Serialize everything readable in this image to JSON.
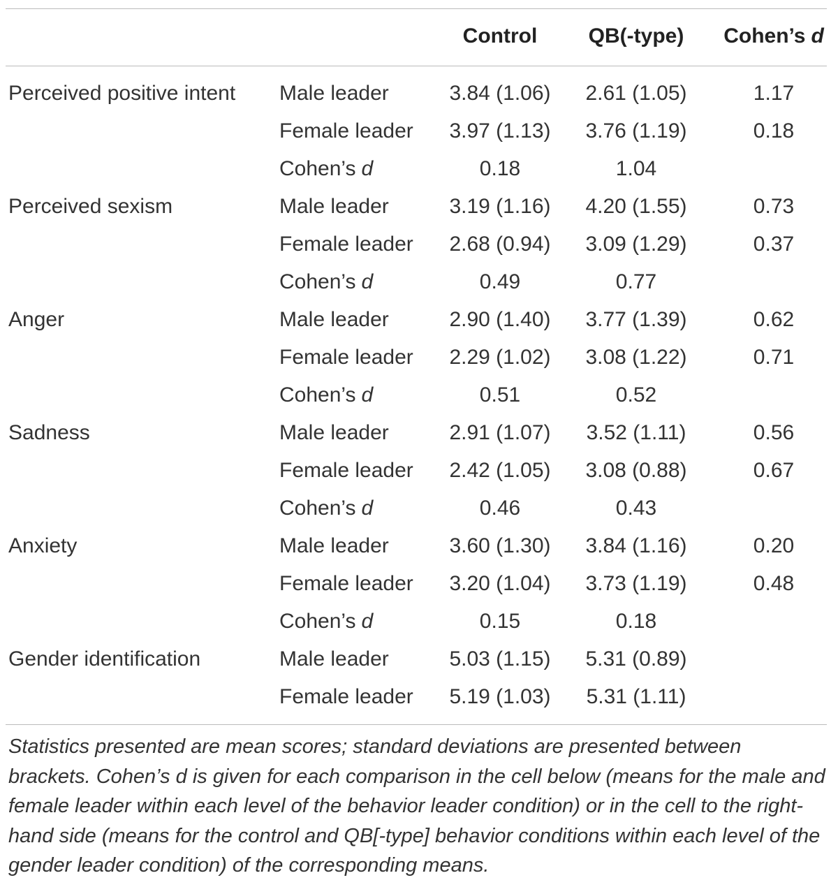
{
  "table": {
    "header": [
      [
        "Control"
      ],
      [
        "QB(-type)"
      ],
      [
        "Cohen’s",
        "d"
      ]
    ],
    "groups": [
      {
        "label": "Perceived positive intent",
        "rows": [
          {
            "condition": [
              "Male leader"
            ],
            "control": "3.84 (1.06)",
            "qb": "2.61 (1.05)",
            "d": "1.17"
          },
          {
            "condition": [
              "Female leader"
            ],
            "control": "3.97 (1.13)",
            "qb": "3.76 (1.19)",
            "d": "0.18"
          },
          {
            "condition": [
              "Cohen’s",
              "d"
            ],
            "control": "0.18",
            "qb": "1.04"
          }
        ]
      },
      {
        "label": "Perceived sexism",
        "rows": [
          {
            "condition": [
              "Male leader"
            ],
            "control": "3.19 (1.16)",
            "qb": "4.20 (1.55)",
            "d": "0.73"
          },
          {
            "condition": [
              "Female leader"
            ],
            "control": "2.68 (0.94)",
            "qb": "3.09 (1.29)",
            "d": "0.37"
          },
          {
            "condition": [
              "Cohen’s",
              "d"
            ],
            "control": "0.49",
            "qb": "0.77"
          }
        ]
      },
      {
        "label": "Anger",
        "rows": [
          {
            "condition": [
              "Male leader"
            ],
            "control": "2.90 (1.40)",
            "qb": "3.77 (1.39)",
            "d": "0.62"
          },
          {
            "condition": [
              "Female leader"
            ],
            "control": "2.29 (1.02)",
            "qb": "3.08 (1.22)",
            "d": "0.71"
          },
          {
            "condition": [
              "Cohen’s",
              "d"
            ],
            "control": "0.51",
            "qb": "0.52"
          }
        ]
      },
      {
        "label": "Sadness",
        "rows": [
          {
            "condition": [
              "Male leader"
            ],
            "control": "2.91 (1.07)",
            "qb": "3.52 (1.11)",
            "d": "0.56"
          },
          {
            "condition": [
              "Female leader"
            ],
            "control": "2.42 (1.05)",
            "qb": "3.08 (0.88)",
            "d": "0.67"
          },
          {
            "condition": [
              "Cohen’s",
              "d"
            ],
            "control": "0.46",
            "qb": "0.43"
          }
        ]
      },
      {
        "label": "Anxiety",
        "rows": [
          {
            "condition": [
              "Male leader"
            ],
            "control": "3.60 (1.30)",
            "qb": "3.84 (1.16)",
            "d": "0.20"
          },
          {
            "condition": [
              "Female leader"
            ],
            "control": "3.20 (1.04)",
            "qb": "3.73 (1.19)",
            "d": "0.48"
          },
          {
            "condition": [
              "Cohen’s",
              "d"
            ],
            "control": "0.15",
            "qb": "0.18"
          }
        ]
      },
      {
        "label": "Gender identification",
        "rows": [
          {
            "condition": [
              "Male leader"
            ],
            "control": "5.03 (1.15)",
            "qb": "5.31 (0.89)"
          },
          {
            "condition": [
              "Female leader"
            ],
            "control": "5.19 (1.03)",
            "qb": "5.31 (1.11)"
          }
        ]
      }
    ],
    "note": "Statistics presented are mean scores; standard deviations are presented between brackets. Cohen’s d is given for each comparison in the cell below (means for the male and female leader within each level of the behavior leader condition) or in the cell to the right-hand side (means for the control and QB[-type] behavior conditions within each level of the gender leader condition) of the corresponding means."
  }
}
